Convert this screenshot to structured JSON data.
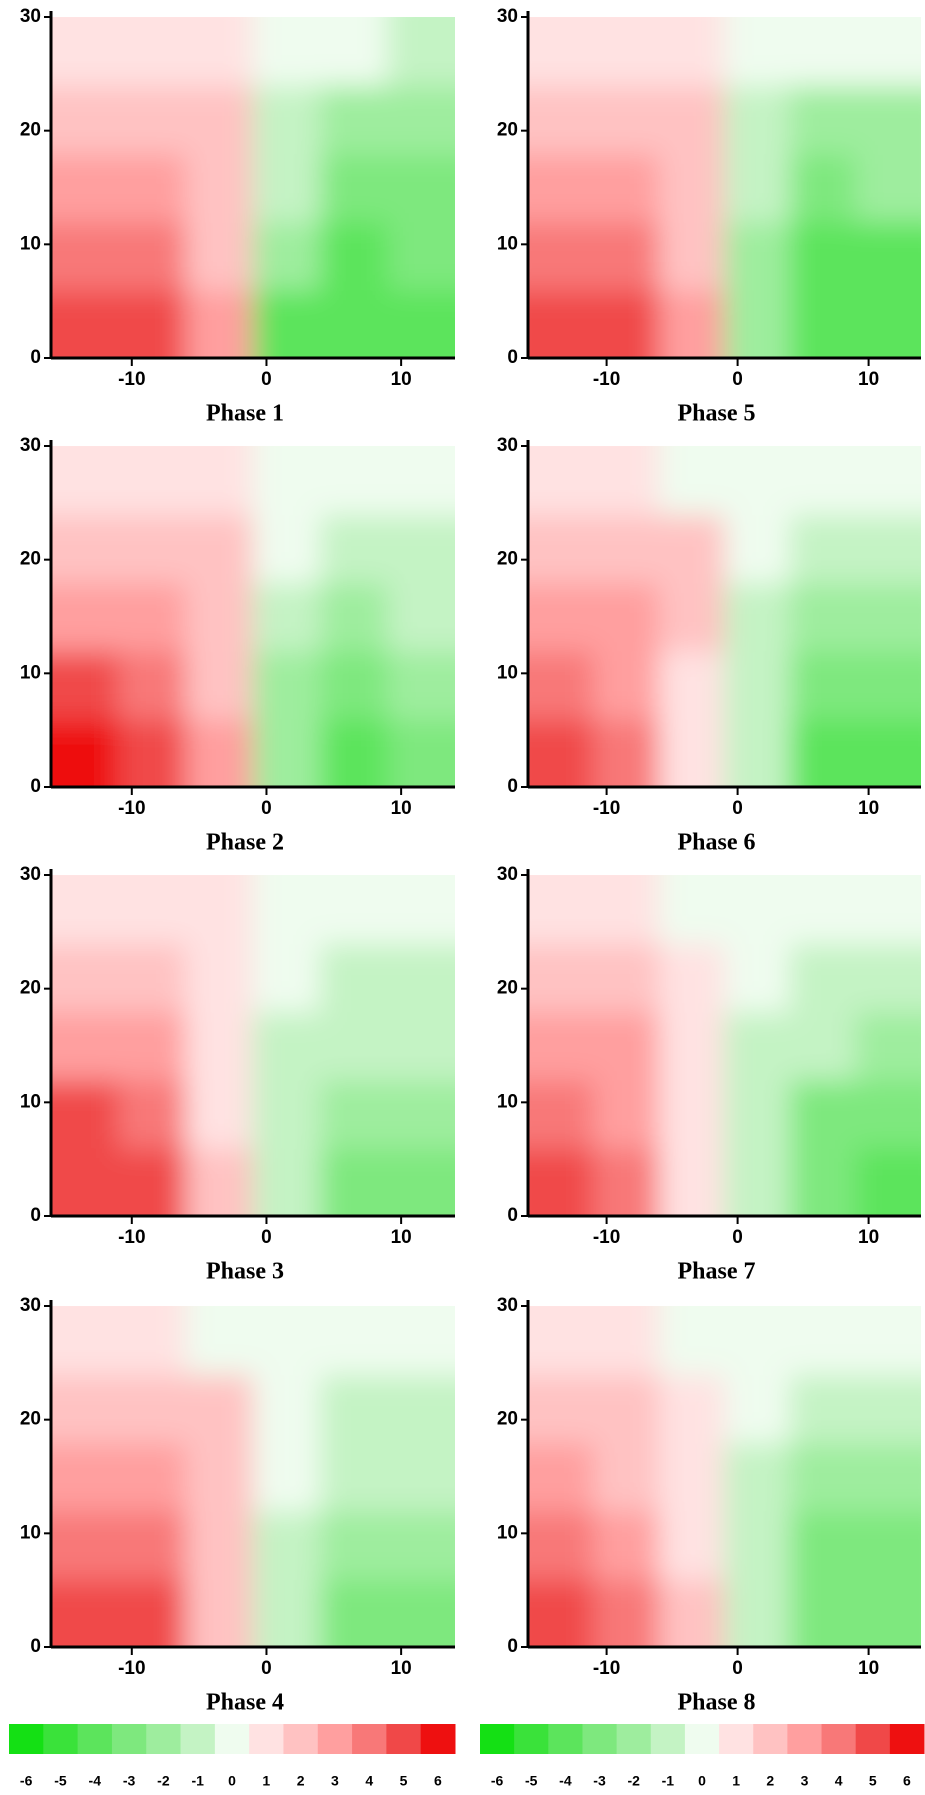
{
  "chart_data": [
    {
      "type": "heatmap",
      "title": "Phase 1",
      "x": [
        -13.5,
        -8.5,
        -3.5,
        1.5,
        6.5,
        11.5
      ],
      "y": [
        3,
        9,
        15,
        21,
        27
      ],
      "z": [
        [
          5,
          5,
          3,
          -4,
          -4,
          -4
        ],
        [
          4,
          4,
          2,
          -2,
          -4,
          -3
        ],
        [
          3,
          3,
          2,
          -1,
          -3,
          -3
        ],
        [
          2,
          2,
          2,
          -1,
          -2,
          -2
        ],
        [
          1,
          1,
          1,
          0,
          0,
          -1
        ]
      ],
      "xlim": [
        -16,
        14
      ],
      "ylim": [
        0,
        30
      ],
      "xticks": [
        -10,
        0,
        10
      ],
      "yticks": [
        0,
        10,
        20,
        30
      ]
    },
    {
      "type": "heatmap",
      "title": "Phase 2",
      "x": [
        -13.5,
        -8.5,
        -3.5,
        1.5,
        6.5,
        11.5
      ],
      "y": [
        3,
        9,
        15,
        21,
        27
      ],
      "z": [
        [
          6,
          5,
          3,
          -2,
          -4,
          -3
        ],
        [
          5,
          4,
          2,
          -2,
          -3,
          -2
        ],
        [
          3,
          3,
          2,
          -1,
          -2,
          -1
        ],
        [
          2,
          2,
          2,
          0,
          -1,
          -1
        ],
        [
          1,
          1,
          1,
          0,
          0,
          0
        ]
      ],
      "xlim": [
        -16,
        14
      ],
      "ylim": [
        0,
        30
      ],
      "xticks": [
        -10,
        0,
        10
      ],
      "yticks": [
        0,
        10,
        20,
        30
      ]
    },
    {
      "type": "heatmap",
      "title": "Phase 3",
      "x": [
        -13.5,
        -8.5,
        -3.5,
        1.5,
        6.5,
        11.5
      ],
      "y": [
        3,
        9,
        15,
        21,
        27
      ],
      "z": [
        [
          5,
          5,
          2,
          -1,
          -3,
          -3
        ],
        [
          5,
          4,
          1,
          -1,
          -2,
          -2
        ],
        [
          3,
          3,
          1,
          -1,
          -1,
          -1
        ],
        [
          2,
          2,
          1,
          0,
          -1,
          -1
        ],
        [
          1,
          1,
          1,
          0,
          0,
          0
        ]
      ],
      "xlim": [
        -16,
        14
      ],
      "ylim": [
        0,
        30
      ],
      "xticks": [
        -10,
        0,
        10
      ],
      "yticks": [
        0,
        10,
        20,
        30
      ]
    },
    {
      "type": "heatmap",
      "title": "Phase 4",
      "x": [
        -13.5,
        -8.5,
        -3.5,
        1.5,
        6.5,
        11.5
      ],
      "y": [
        3,
        9,
        15,
        21,
        27
      ],
      "z": [
        [
          5,
          5,
          2,
          -1,
          -3,
          -3
        ],
        [
          4,
          4,
          2,
          -1,
          -2,
          -2
        ],
        [
          3,
          3,
          2,
          0,
          -1,
          -1
        ],
        [
          2,
          2,
          2,
          0,
          -1,
          -1
        ],
        [
          1,
          1,
          0,
          0,
          0,
          0
        ]
      ],
      "xlim": [
        -16,
        14
      ],
      "ylim": [
        0,
        30
      ],
      "xticks": [
        -10,
        0,
        10
      ],
      "yticks": [
        0,
        10,
        20,
        30
      ]
    },
    {
      "type": "heatmap",
      "title": "Phase 5",
      "x": [
        -13.5,
        -8.5,
        -3.5,
        1.5,
        6.5,
        11.5
      ],
      "y": [
        3,
        9,
        15,
        21,
        27
      ],
      "z": [
        [
          5,
          5,
          3,
          -2,
          -4,
          -4
        ],
        [
          4,
          4,
          2,
          -2,
          -4,
          -4
        ],
        [
          3,
          3,
          2,
          -1,
          -3,
          -2
        ],
        [
          2,
          2,
          2,
          -1,
          -2,
          -2
        ],
        [
          1,
          1,
          1,
          0,
          0,
          0
        ]
      ],
      "xlim": [
        -16,
        14
      ],
      "ylim": [
        0,
        30
      ],
      "xticks": [
        -10,
        0,
        10
      ],
      "yticks": [
        0,
        10,
        20,
        30
      ]
    },
    {
      "type": "heatmap",
      "title": "Phase 6",
      "x": [
        -13.5,
        -8.5,
        -3.5,
        1.5,
        6.5,
        11.5
      ],
      "y": [
        3,
        9,
        15,
        21,
        27
      ],
      "z": [
        [
          5,
          4,
          1,
          -1,
          -4,
          -4
        ],
        [
          4,
          3,
          1,
          -1,
          -3,
          -3
        ],
        [
          3,
          3,
          2,
          -1,
          -2,
          -2
        ],
        [
          2,
          2,
          2,
          0,
          -1,
          -1
        ],
        [
          1,
          1,
          0,
          0,
          0,
          0
        ]
      ],
      "xlim": [
        -16,
        14
      ],
      "ylim": [
        0,
        30
      ],
      "xticks": [
        -10,
        0,
        10
      ],
      "yticks": [
        0,
        10,
        20,
        30
      ]
    },
    {
      "type": "heatmap",
      "title": "Phase 7",
      "x": [
        -13.5,
        -8.5,
        -3.5,
        1.5,
        6.5,
        11.5
      ],
      "y": [
        3,
        9,
        15,
        21,
        27
      ],
      "z": [
        [
          5,
          4,
          1,
          -1,
          -3,
          -4
        ],
        [
          4,
          3,
          1,
          -1,
          -3,
          -3
        ],
        [
          3,
          3,
          1,
          -1,
          -1,
          -2
        ],
        [
          2,
          2,
          1,
          0,
          -1,
          -1
        ],
        [
          1,
          1,
          0,
          0,
          0,
          0
        ]
      ],
      "xlim": [
        -16,
        14
      ],
      "ylim": [
        0,
        30
      ],
      "xticks": [
        -10,
        0,
        10
      ],
      "yticks": [
        0,
        10,
        20,
        30
      ]
    },
    {
      "type": "heatmap",
      "title": "Phase 8",
      "x": [
        -13.5,
        -8.5,
        -3.5,
        1.5,
        6.5,
        11.5
      ],
      "y": [
        3,
        9,
        15,
        21,
        27
      ],
      "z": [
        [
          5,
          4,
          2,
          -1,
          -3,
          -3
        ],
        [
          4,
          3,
          1,
          -1,
          -3,
          -3
        ],
        [
          3,
          2,
          1,
          -1,
          -2,
          -2
        ],
        [
          2,
          2,
          1,
          0,
          -1,
          -1
        ],
        [
          1,
          1,
          0,
          0,
          0,
          0
        ]
      ],
      "xlim": [
        -16,
        14
      ],
      "ylim": [
        0,
        30
      ],
      "xticks": [
        -10,
        0,
        10
      ],
      "yticks": [
        0,
        10,
        20,
        30
      ]
    }
  ],
  "colorbar": {
    "ticks": [
      -6,
      -5,
      -4,
      -3,
      -2,
      -1,
      0,
      1,
      2,
      3,
      4,
      5,
      6
    ],
    "colors": [
      "#14e014",
      "#3ae23a",
      "#5ce45c",
      "#7ee87e",
      "#9eed9e",
      "#c4f3c4",
      "#effcef",
      "#ffe2e2",
      "#ffc2c2",
      "#ff9f9f",
      "#f87878",
      "#f04848",
      "#ee1010"
    ]
  }
}
